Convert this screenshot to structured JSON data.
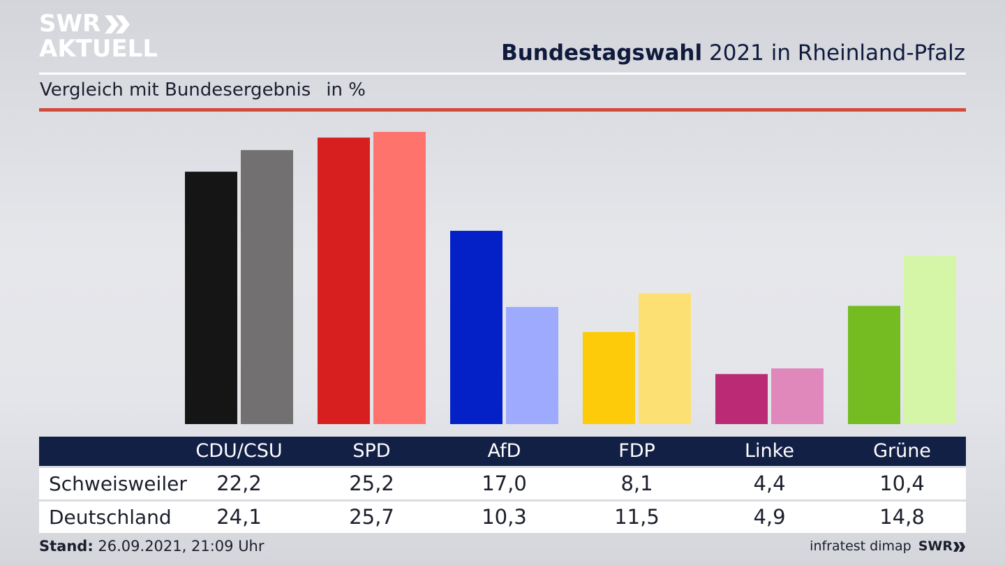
{
  "brand": {
    "logo_line1": "SWR",
    "logo_line2": "AKTUELL",
    "footer_logo": "SWR"
  },
  "header": {
    "title_bold": "Bundestagswahl",
    "title_rest": "2021 in Rheinland-Pfalz",
    "subtitle": "Vergleich mit Bundesergebnis",
    "unit": "in %"
  },
  "colors": {
    "local": [
      "#151515",
      "#d71f1f",
      "#0421c7",
      "#fecb0a",
      "#bb2a74",
      "#74bc21"
    ],
    "national": [
      "#727070",
      "#ff736d",
      "#9daafe",
      "#fde073",
      "#e088bb",
      "#d5f6a7"
    ],
    "accent_line": "#d24a3e",
    "table_header": "#132046"
  },
  "chart_data": {
    "type": "bar",
    "title": "Bundestagswahl 2021 in Rheinland-Pfalz",
    "subtitle": "Vergleich mit Bundesergebnis in %",
    "categories": [
      "CDU/CSU",
      "SPD",
      "AfD",
      "FDP",
      "Linke",
      "Grüne"
    ],
    "series": [
      {
        "name": "Schweisweiler",
        "values": [
          22.2,
          25.2,
          17.0,
          8.1,
          4.4,
          10.4
        ]
      },
      {
        "name": "Deutschland",
        "values": [
          24.1,
          25.7,
          10.3,
          11.5,
          4.9,
          14.8
        ]
      }
    ],
    "value_labels": [
      [
        "22,2",
        "25,2",
        "17,0",
        "8,1",
        "4,4",
        "10,4"
      ],
      [
        "24,1",
        "25,7",
        "10,3",
        "11,5",
        "4,9",
        "14,8"
      ]
    ],
    "ylim": [
      0,
      26
    ],
    "xlabel": "",
    "ylabel": "",
    "grid": false,
    "legend": "table-below"
  },
  "footer": {
    "stand_label": "Stand:",
    "stand_value": "26.09.2021, 21:09 Uhr",
    "source": "infratest dimap"
  }
}
